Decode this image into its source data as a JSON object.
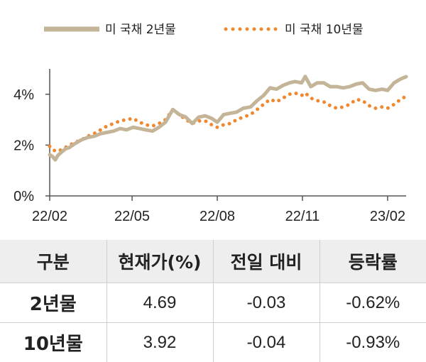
{
  "chart_data": {
    "type": "line",
    "series": [
      {
        "name": "미 국채 2년물",
        "color": "#c4b598",
        "style": "solid",
        "points": [
          [
            "2022-02-01",
            1.62
          ],
          [
            "2022-02-04",
            1.55
          ],
          [
            "2022-02-07",
            1.42
          ],
          [
            "2022-02-10",
            1.6
          ],
          [
            "2022-02-14",
            1.73
          ],
          [
            "2022-02-18",
            1.85
          ],
          [
            "2022-02-22",
            1.9
          ],
          [
            "2022-02-28",
            2.05
          ],
          [
            "2022-03-07",
            2.2
          ],
          [
            "2022-03-14",
            2.3
          ],
          [
            "2022-03-21",
            2.35
          ],
          [
            "2022-03-28",
            2.45
          ],
          [
            "2022-04-04",
            2.5
          ],
          [
            "2022-04-11",
            2.55
          ],
          [
            "2022-04-18",
            2.65
          ],
          [
            "2022-04-25",
            2.6
          ],
          [
            "2022-05-02",
            2.7
          ],
          [
            "2022-05-09",
            2.65
          ],
          [
            "2022-05-16",
            2.6
          ],
          [
            "2022-05-23",
            2.55
          ],
          [
            "2022-05-30",
            2.7
          ],
          [
            "2022-06-06",
            2.9
          ],
          [
            "2022-06-14",
            3.4
          ],
          [
            "2022-06-21",
            3.2
          ],
          [
            "2022-06-28",
            3.1
          ],
          [
            "2022-07-05",
            2.85
          ],
          [
            "2022-07-12",
            3.1
          ],
          [
            "2022-07-19",
            3.15
          ],
          [
            "2022-07-26",
            3.05
          ],
          [
            "2022-08-01",
            2.9
          ],
          [
            "2022-08-08",
            3.2
          ],
          [
            "2022-08-15",
            3.25
          ],
          [
            "2022-08-22",
            3.3
          ],
          [
            "2022-08-29",
            3.45
          ],
          [
            "2022-09-06",
            3.5
          ],
          [
            "2022-09-13",
            3.75
          ],
          [
            "2022-09-20",
            3.95
          ],
          [
            "2022-09-27",
            4.25
          ],
          [
            "2022-10-04",
            4.2
          ],
          [
            "2022-10-11",
            4.35
          ],
          [
            "2022-10-18",
            4.45
          ],
          [
            "2022-10-24",
            4.5
          ],
          [
            "2022-10-31",
            4.45
          ],
          [
            "2022-11-04",
            4.7
          ],
          [
            "2022-11-10",
            4.3
          ],
          [
            "2022-11-17",
            4.45
          ],
          [
            "2022-11-24",
            4.45
          ],
          [
            "2022-12-01",
            4.3
          ],
          [
            "2022-12-08",
            4.3
          ],
          [
            "2022-12-15",
            4.25
          ],
          [
            "2022-12-22",
            4.3
          ],
          [
            "2022-12-29",
            4.4
          ],
          [
            "2023-01-05",
            4.45
          ],
          [
            "2023-01-12",
            4.2
          ],
          [
            "2023-01-19",
            4.15
          ],
          [
            "2023-01-26",
            4.2
          ],
          [
            "2023-02-01",
            4.15
          ],
          [
            "2023-02-08",
            4.45
          ],
          [
            "2023-02-15",
            4.6
          ],
          [
            "2023-02-21",
            4.69
          ]
        ]
      },
      {
        "name": "미 국채 10년물",
        "color": "#f0882e",
        "style": "dotted",
        "points": [
          [
            "2022-02-01",
            1.95
          ],
          [
            "2022-02-05",
            1.8
          ],
          [
            "2022-02-10",
            1.75
          ],
          [
            "2022-02-15",
            1.85
          ],
          [
            "2022-02-20",
            1.95
          ],
          [
            "2022-02-28",
            2.1
          ],
          [
            "2022-03-07",
            2.2
          ],
          [
            "2022-03-14",
            2.35
          ],
          [
            "2022-03-21",
            2.45
          ],
          [
            "2022-03-28",
            2.6
          ],
          [
            "2022-04-04",
            2.75
          ],
          [
            "2022-04-11",
            2.85
          ],
          [
            "2022-04-18",
            2.95
          ],
          [
            "2022-04-25",
            3.0
          ],
          [
            "2022-05-02",
            3.05
          ],
          [
            "2022-05-09",
            2.9
          ],
          [
            "2022-05-16",
            2.8
          ],
          [
            "2022-05-23",
            2.75
          ],
          [
            "2022-05-30",
            2.85
          ],
          [
            "2022-06-06",
            3.0
          ],
          [
            "2022-06-14",
            3.4
          ],
          [
            "2022-06-21",
            3.2
          ],
          [
            "2022-06-28",
            3.0
          ],
          [
            "2022-07-05",
            2.85
          ],
          [
            "2022-07-12",
            2.95
          ],
          [
            "2022-07-19",
            2.95
          ],
          [
            "2022-07-26",
            2.8
          ],
          [
            "2022-08-01",
            2.7
          ],
          [
            "2022-08-08",
            2.8
          ],
          [
            "2022-08-15",
            2.85
          ],
          [
            "2022-08-22",
            3.0
          ],
          [
            "2022-08-29",
            3.1
          ],
          [
            "2022-09-06",
            3.2
          ],
          [
            "2022-09-13",
            3.4
          ],
          [
            "2022-09-20",
            3.6
          ],
          [
            "2022-09-27",
            3.8
          ],
          [
            "2022-10-04",
            3.7
          ],
          [
            "2022-10-11",
            3.85
          ],
          [
            "2022-10-18",
            4.0
          ],
          [
            "2022-10-24",
            4.05
          ],
          [
            "2022-10-31",
            3.95
          ],
          [
            "2022-11-04",
            4.05
          ],
          [
            "2022-11-10",
            3.85
          ],
          [
            "2022-11-17",
            3.75
          ],
          [
            "2022-11-24",
            3.7
          ],
          [
            "2022-12-01",
            3.55
          ],
          [
            "2022-12-08",
            3.45
          ],
          [
            "2022-12-15",
            3.5
          ],
          [
            "2022-12-22",
            3.6
          ],
          [
            "2022-12-29",
            3.8
          ],
          [
            "2023-01-05",
            3.75
          ],
          [
            "2023-01-12",
            3.55
          ],
          [
            "2023-01-19",
            3.45
          ],
          [
            "2023-01-26",
            3.5
          ],
          [
            "2023-02-01",
            3.45
          ],
          [
            "2023-02-08",
            3.6
          ],
          [
            "2023-02-15",
            3.8
          ],
          [
            "2023-02-21",
            3.92
          ]
        ]
      }
    ],
    "x_ticks": [
      {
        "date": "2022-02-01",
        "label": "22/02"
      },
      {
        "date": "2022-05-01",
        "label": "22/05"
      },
      {
        "date": "2022-08-01",
        "label": "22/08"
      },
      {
        "date": "2022-11-01",
        "label": "22/11"
      },
      {
        "date": "2023-02-01",
        "label": "23/02"
      }
    ],
    "xlim": [
      "2022-02-01",
      "2023-02-21"
    ],
    "y_ticks": [
      {
        "value": 0,
        "label": "0%"
      },
      {
        "value": 2,
        "label": "2%"
      },
      {
        "value": 4,
        "label": "4%"
      }
    ],
    "ylim": [
      0,
      5
    ],
    "legend_position": "top",
    "grid": false
  },
  "table": {
    "headers": [
      "구분",
      "현재가(%)",
      "전일 대비",
      "등락률"
    ],
    "rows": [
      [
        "2년물",
        "4.69",
        "-0.03",
        "-0.62%"
      ],
      [
        "10년물",
        "3.92",
        "-0.04",
        "-0.93%"
      ]
    ]
  }
}
